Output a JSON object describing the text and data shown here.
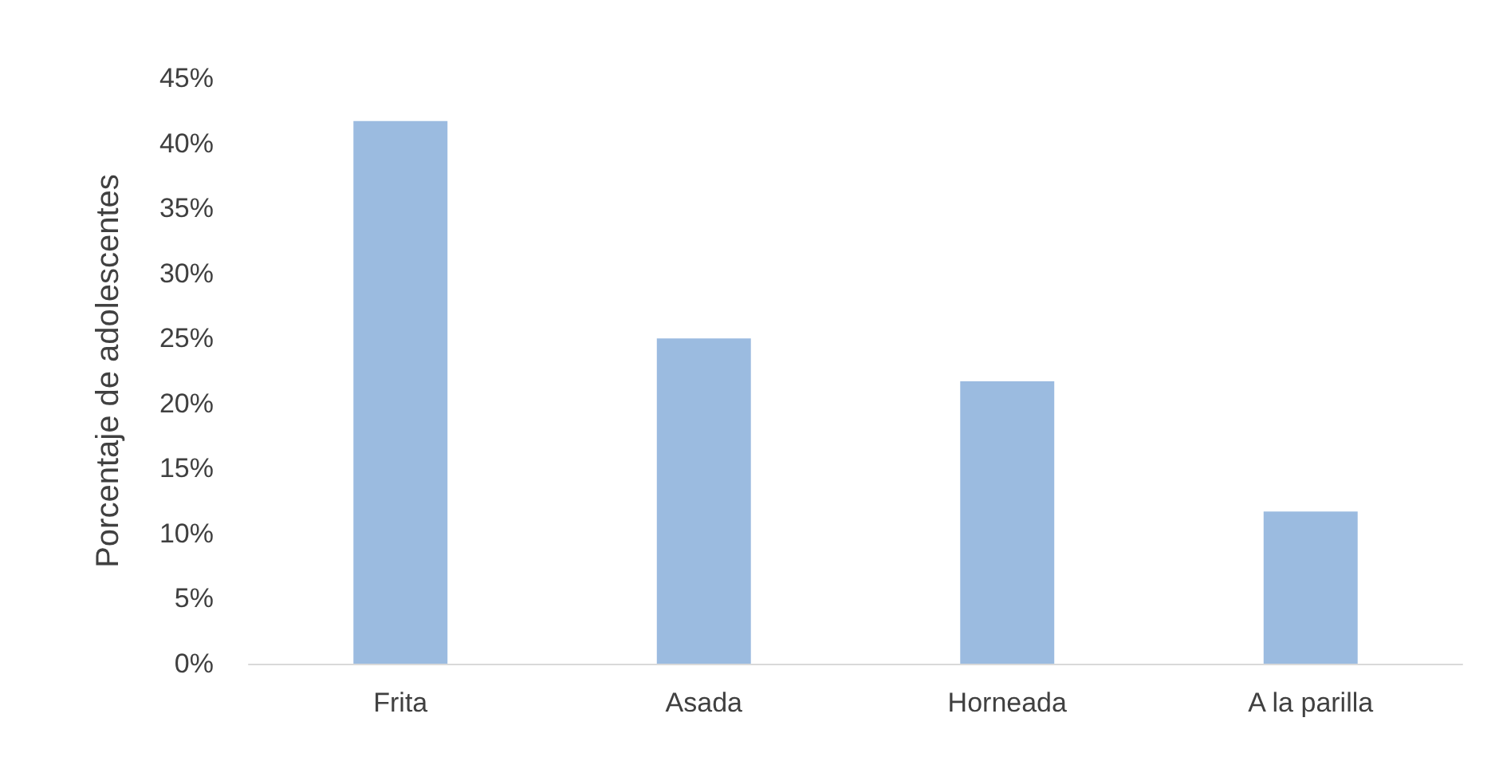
{
  "chart_data": {
    "type": "bar",
    "ylabel": "Porcentaje de adolescentes",
    "categories": [
      "Frita",
      "Asada",
      "Horneada",
      "A la parilla"
    ],
    "values": [
      41.7,
      25,
      21.7,
      11.7
    ],
    "color": "#9bbbe0",
    "ylim": [
      0,
      45
    ],
    "yticks": [
      {
        "value": 0,
        "label": "0%"
      },
      {
        "value": 5,
        "label": "5%"
      },
      {
        "value": 10,
        "label": "10%"
      },
      {
        "value": 15,
        "label": "15%"
      },
      {
        "value": 20,
        "label": "20%"
      },
      {
        "value": 25,
        "label": "25%"
      },
      {
        "value": 30,
        "label": "30%"
      },
      {
        "value": 35,
        "label": "35%"
      },
      {
        "value": 40,
        "label": "40%"
      },
      {
        "value": 45,
        "label": "45%"
      }
    ],
    "grid": false
  }
}
